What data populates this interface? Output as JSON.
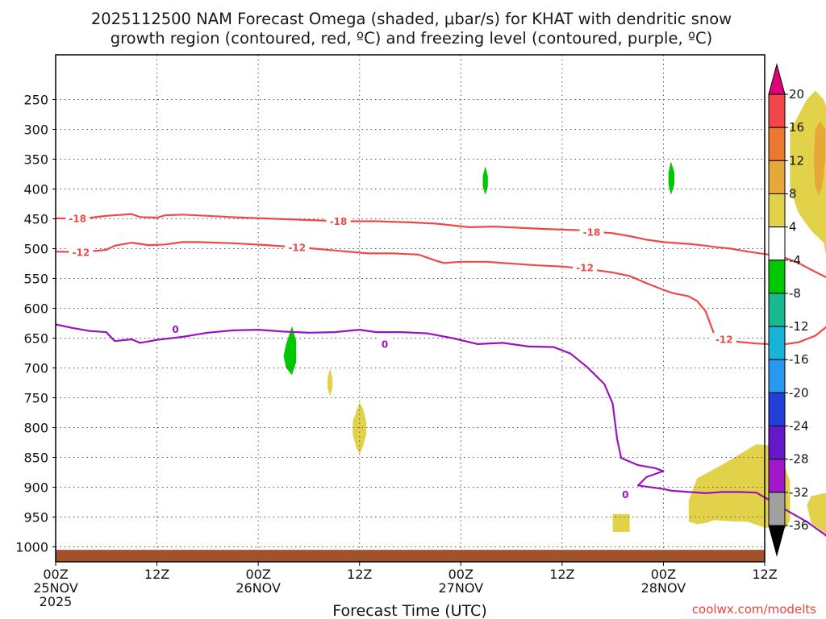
{
  "chart_data": {
    "type": "time-height cross section",
    "title_line1": "2025112500 NAM Forecast Omega (shaded, μbar/s) for KHAT with dendritic snow",
    "title_line2": "growth region (contoured, red, ºC) and freezing level (contoured, purple, ºC)",
    "xlabel": "Forecast Time (UTC)",
    "credit": "coolwx.com/modelts",
    "xlim_hours": [
      0,
      84
    ],
    "ylim_hPa": [
      1025,
      175
    ],
    "y_ticks": [
      "250",
      "300",
      "350",
      "400",
      "450",
      "500",
      "550",
      "600",
      "650",
      "700",
      "750",
      "800",
      "850",
      "900",
      "950",
      "1000"
    ],
    "x_ticks": [
      {
        "hour": 0,
        "label": "00Z",
        "sub": "25NOV",
        "sub2": "2025"
      },
      {
        "hour": 12,
        "label": "12Z",
        "sub": "",
        "sub2": ""
      },
      {
        "hour": 24,
        "label": "00Z",
        "sub": "26NOV",
        "sub2": ""
      },
      {
        "hour": 36,
        "label": "12Z",
        "sub": "",
        "sub2": ""
      },
      {
        "hour": 48,
        "label": "00Z",
        "sub": "27NOV",
        "sub2": ""
      },
      {
        "hour": 60,
        "label": "12Z",
        "sub": "",
        "sub2": ""
      },
      {
        "hour": 72,
        "label": "00Z",
        "sub": "28NOV",
        "sub2": ""
      },
      {
        "hour": 84,
        "label": "12Z",
        "sub": "",
        "sub2": ""
      }
    ],
    "colorbar": {
      "labels": [
        "20",
        "16",
        "12",
        "8",
        "4",
        "-4",
        "-8",
        "-12",
        "-16",
        "-20",
        "-24",
        "-28",
        "-32",
        "-36"
      ],
      "colors": [
        "#e2007a",
        "#f04848",
        "#ec7830",
        "#e6a838",
        "#e2d24a",
        "#ffffff",
        "#00c800",
        "#18b890",
        "#18b4d8",
        "#2898f0",
        "#2040d8",
        "#6418c8",
        "#a018c8",
        "#a0a0a0",
        "#000000"
      ]
    },
    "contours": [
      {
        "name": "-18C isotherm",
        "label": "-18",
        "color": "#f04848",
        "points": [
          [
            0,
            449
          ],
          [
            3,
            450
          ],
          [
            6,
            445
          ],
          [
            9,
            442
          ],
          [
            10,
            447
          ],
          [
            12,
            448
          ],
          [
            13,
            444
          ],
          [
            15,
            443
          ],
          [
            18,
            445
          ],
          [
            22,
            448
          ],
          [
            26,
            450
          ],
          [
            30,
            452
          ],
          [
            34,
            454
          ],
          [
            38,
            454
          ],
          [
            42,
            456
          ],
          [
            45,
            458
          ],
          [
            47,
            461
          ],
          [
            49,
            464
          ],
          [
            52,
            463
          ],
          [
            55,
            465
          ],
          [
            58,
            467
          ],
          [
            62,
            469
          ],
          [
            64,
            472
          ],
          [
            66,
            474
          ],
          [
            68,
            479
          ],
          [
            70,
            485
          ],
          [
            72,
            489
          ],
          [
            75,
            492
          ],
          [
            77,
            495
          ],
          [
            78,
            497
          ],
          [
            80,
            500
          ],
          [
            82,
            505
          ],
          [
            84,
            509
          ],
          [
            86,
            513
          ],
          [
            88,
            524
          ],
          [
            90,
            539
          ],
          [
            92,
            553
          ],
          [
            94,
            560
          ],
          [
            96,
            560
          ],
          [
            98,
            555
          ],
          [
            100,
            545
          ],
          [
            101,
            527
          ],
          [
            103,
            488
          ],
          [
            104,
            480
          ],
          [
            107,
            475
          ],
          [
            110,
            478
          ],
          [
            112,
            480
          ]
        ],
        "label_at": [
          [
            2.6,
            449
          ],
          [
            33.5,
            454
          ],
          [
            63.5,
            472
          ]
        ]
      },
      {
        "name": "-12C isotherm",
        "label": "-12",
        "color": "#f04848",
        "points": [
          [
            0,
            505
          ],
          [
            3,
            506
          ],
          [
            6,
            502
          ],
          [
            7,
            495
          ],
          [
            9,
            490
          ],
          [
            11,
            494
          ],
          [
            13,
            493
          ],
          [
            15,
            489
          ],
          [
            17,
            489
          ],
          [
            21,
            491
          ],
          [
            25,
            494
          ],
          [
            29,
            498
          ],
          [
            33,
            503
          ],
          [
            37,
            508
          ],
          [
            40,
            508
          ],
          [
            43,
            510
          ],
          [
            45,
            520
          ],
          [
            46,
            524
          ],
          [
            48,
            522
          ],
          [
            51,
            522
          ],
          [
            54,
            525
          ],
          [
            57,
            528
          ],
          [
            60,
            530
          ],
          [
            63,
            534
          ],
          [
            66,
            540
          ],
          [
            68,
            546
          ],
          [
            70,
            558
          ],
          [
            72,
            569
          ],
          [
            73,
            574
          ],
          [
            75,
            580
          ],
          [
            76,
            588
          ],
          [
            77,
            605
          ],
          [
            78,
            643
          ],
          [
            80,
            655
          ],
          [
            83,
            659
          ],
          [
            86,
            661
          ],
          [
            88,
            657
          ],
          [
            90,
            646
          ],
          [
            93,
            612
          ],
          [
            96,
            582
          ],
          [
            98,
            564
          ],
          [
            100,
            545
          ],
          [
            102,
            530
          ],
          [
            104,
            525
          ],
          [
            107,
            520
          ],
          [
            110,
            518
          ],
          [
            112,
            518
          ]
        ],
        "label_at": [
          [
            3,
            506
          ],
          [
            28.6,
            498
          ],
          [
            62.7,
            532
          ],
          [
            79.2,
            652
          ]
        ]
      },
      {
        "name": "0C freezing level",
        "label": "0",
        "color": "#9a12c0",
        "points": [
          [
            0,
            627
          ],
          [
            2,
            633
          ],
          [
            4,
            638
          ],
          [
            6,
            640
          ],
          [
            7,
            655
          ],
          [
            9,
            652
          ],
          [
            10,
            658
          ],
          [
            12,
            653
          ],
          [
            15,
            648
          ],
          [
            18,
            641
          ],
          [
            21,
            637
          ],
          [
            24,
            636
          ],
          [
            27,
            639
          ],
          [
            30,
            641
          ],
          [
            33,
            640
          ],
          [
            36,
            636
          ],
          [
            38,
            640
          ],
          [
            41,
            640
          ],
          [
            44,
            642
          ],
          [
            47,
            650
          ],
          [
            50,
            660
          ],
          [
            53,
            658
          ],
          [
            56,
            664
          ],
          [
            59,
            665
          ],
          [
            61,
            676
          ],
          [
            63,
            699
          ],
          [
            65,
            727
          ],
          [
            66,
            760
          ],
          [
            66.5,
            818
          ],
          [
            67,
            851
          ],
          [
            69,
            863
          ],
          [
            71,
            868
          ],
          [
            72,
            873
          ],
          [
            70,
            883
          ],
          [
            69,
            897
          ],
          [
            72,
            903
          ],
          [
            73,
            906
          ],
          [
            75,
            908
          ],
          [
            77,
            910
          ],
          [
            79,
            908
          ],
          [
            81,
            908
          ],
          [
            83,
            909
          ],
          [
            85,
            925
          ],
          [
            87,
            942
          ],
          [
            89,
            958
          ],
          [
            91,
            978
          ],
          [
            92,
            990
          ],
          [
            93,
            1008
          ],
          [
            94,
            1008
          ]
        ],
        "label_at": [
          [
            14.2,
            635
          ],
          [
            39,
            660
          ],
          [
            67.5,
            912
          ]
        ]
      }
    ],
    "shaded_areas": [
      {
        "name": "omega +4 to +8 area upper",
        "color": "#e2d24a",
        "points": [
          [
            87,
            297
          ],
          [
            87.5,
            290
          ],
          [
            89,
            250
          ],
          [
            90,
            235
          ],
          [
            91,
            250
          ],
          [
            92,
            290
          ],
          [
            93,
            297
          ],
          [
            94,
            330
          ],
          [
            94.5,
            400
          ],
          [
            94.5,
            470
          ],
          [
            94.5,
            590
          ],
          [
            93.5,
            612
          ],
          [
            92.5,
            612
          ],
          [
            92.5,
            590
          ],
          [
            91.5,
            530
          ],
          [
            91,
            490
          ],
          [
            89.5,
            470
          ],
          [
            88,
            440
          ],
          [
            87,
            400
          ],
          [
            87,
            350
          ]
        ]
      },
      {
        "name": "omega +8 to +12 core",
        "color": "#e6a838",
        "points": [
          [
            90,
            300
          ],
          [
            90.6,
            286
          ],
          [
            91.2,
            300
          ],
          [
            91.2,
            350
          ],
          [
            90.8,
            398
          ],
          [
            90.4,
            410
          ],
          [
            90,
            398
          ],
          [
            89.8,
            350
          ]
        ]
      },
      {
        "name": "omega +4 to +8 area lower",
        "color": "#e2d24a",
        "points": [
          [
            75,
            922
          ],
          [
            76,
            885
          ],
          [
            79,
            862
          ],
          [
            81,
            845
          ],
          [
            83,
            828
          ],
          [
            85,
            830
          ],
          [
            86,
            850
          ],
          [
            87,
            890
          ],
          [
            87,
            955
          ],
          [
            86.5,
            968
          ],
          [
            84,
            968
          ],
          [
            82,
            958
          ],
          [
            80,
            957
          ],
          [
            78,
            955
          ],
          [
            77,
            960
          ],
          [
            76,
            962
          ],
          [
            75,
            958
          ]
        ]
      },
      {
        "name": "omega +4 to +8 area right",
        "color": "#e2d24a",
        "points": [
          [
            89,
            930
          ],
          [
            89.5,
            915
          ],
          [
            91,
            910
          ],
          [
            93,
            915
          ],
          [
            94,
            918
          ],
          [
            95,
            908
          ],
          [
            96,
            910
          ],
          [
            96.5,
            935
          ],
          [
            96,
            955
          ],
          [
            95,
            975
          ],
          [
            94,
            995
          ],
          [
            92,
            990
          ],
          [
            91,
            975
          ],
          [
            89.5,
            960
          ]
        ]
      },
      {
        "name": "omega +4 to +8 small left",
        "color": "#e2d24a",
        "points": [
          [
            66,
            945
          ],
          [
            68,
            945
          ],
          [
            68,
            975
          ],
          [
            66,
            975
          ]
        ]
      },
      {
        "name": "omega +4 to +8 blob 26NOV",
        "color": "#e2d24a",
        "points": [
          [
            36,
            758
          ],
          [
            36.4,
            768
          ],
          [
            36.8,
            790
          ],
          [
            36.8,
            812
          ],
          [
            36.4,
            832
          ],
          [
            36,
            845
          ],
          [
            35.6,
            832
          ],
          [
            35.2,
            812
          ],
          [
            35.2,
            790
          ]
        ]
      },
      {
        "name": "omega +4 to +8 blob 26NOV small",
        "color": "#e2d24a",
        "points": [
          [
            32.5,
            700
          ],
          [
            32.8,
            718
          ],
          [
            32.8,
            733
          ],
          [
            32.5,
            748
          ],
          [
            32.2,
            733
          ],
          [
            32.2,
            718
          ]
        ]
      },
      {
        "name": "omega -4 to -8 blob A",
        "color": "#00c800",
        "points": [
          [
            28,
            630
          ],
          [
            28.5,
            655
          ],
          [
            28.5,
            690
          ],
          [
            28,
            712
          ],
          [
            27.3,
            700
          ],
          [
            27,
            680
          ],
          [
            27.3,
            660
          ]
        ]
      },
      {
        "name": "omega -4 to -8 blob B",
        "color": "#00c800",
        "points": [
          [
            50.9,
            362
          ],
          [
            51.2,
            378
          ],
          [
            51.2,
            396
          ],
          [
            50.9,
            410
          ],
          [
            50.6,
            396
          ],
          [
            50.6,
            378
          ]
        ]
      },
      {
        "name": "omega -4 to -8 blob C",
        "color": "#00c800",
        "points": [
          [
            72.9,
            354
          ],
          [
            73.3,
            372
          ],
          [
            73.3,
            392
          ],
          [
            72.9,
            410
          ],
          [
            72.6,
            392
          ],
          [
            72.6,
            372
          ]
        ]
      }
    ],
    "ground": {
      "name": "terrain",
      "color": "#a0522d"
    }
  }
}
